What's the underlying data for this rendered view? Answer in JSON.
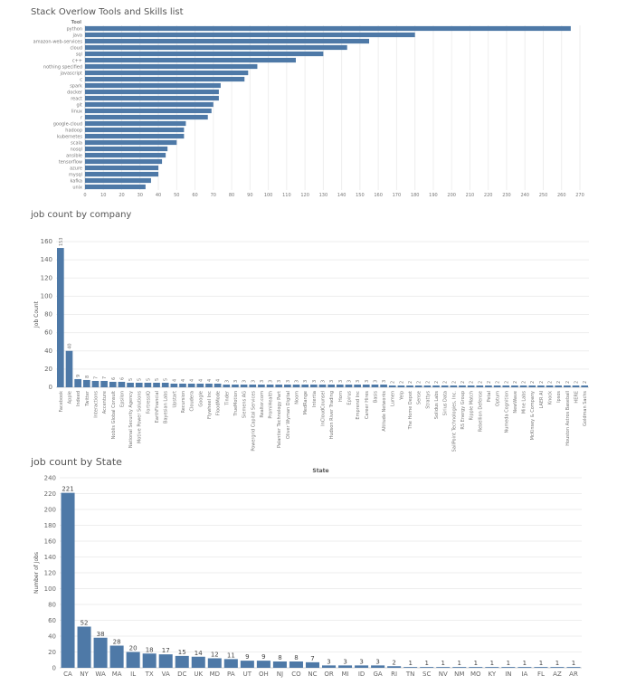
{
  "colors": {
    "bar": "#4e79a7"
  },
  "chart_data": [
    {
      "type": "bar",
      "orientation": "horizontal",
      "title": "Stack Overlow Tools and Skills list",
      "category_header": "Tool",
      "categories": [
        "python",
        "java",
        "amazon-web-services",
        "cloud",
        "sql",
        "c++",
        "nothing specified",
        "javascript",
        "c",
        "spark",
        "docker",
        "react",
        "git",
        "linux",
        "r",
        "google-cloud",
        "hadoop",
        "kubernetes",
        "scala",
        "nosql",
        "ansible",
        "tensorflow",
        "azure",
        "mysql",
        "kafka",
        "unix"
      ],
      "values": [
        265,
        180,
        155,
        143,
        130,
        115,
        94,
        89,
        87,
        74,
        73,
        73,
        70,
        69,
        67,
        55,
        54,
        54,
        50,
        45,
        44,
        42,
        40,
        40,
        36,
        33
      ],
      "xlim": [
        0,
        270
      ],
      "xticks": [
        0,
        10,
        20,
        30,
        40,
        50,
        60,
        70,
        80,
        90,
        100,
        110,
        120,
        130,
        140,
        150,
        160,
        170,
        180,
        190,
        200,
        210,
        220,
        230,
        240,
        250,
        260,
        270
      ],
      "xlabel": "",
      "grid": true
    },
    {
      "type": "bar",
      "title": "job count by company",
      "ylabel": "Job Count",
      "ylim": [
        0,
        160
      ],
      "yticks": [
        0,
        20,
        40,
        60,
        80,
        100,
        120,
        140,
        160
      ],
      "categories": [
        "Facebook",
        "Apple",
        "Indeed",
        "Twitter",
        "Interactions",
        "Accenture",
        "Noblis Global Consult",
        "Epsilon",
        "National Security Agency",
        "Motive Power Solutions",
        "FortressIQ",
        "EarthFinancial",
        "Bayesian Labs",
        "Upstart",
        "Recursion",
        "Cloudera",
        "Google",
        "Flywheel Inc",
        "FloodMode",
        "Tinder",
        "TrueMotion",
        "Siemens AG",
        "Powergrid Capital Services",
        "Realtor.com",
        "PromiHealth",
        "Palantier Technology Part",
        "Oliver Wyman Digital",
        "Noom",
        "MedRange",
        "Intertia",
        "InCloudCounsel",
        "Hudson River Trading",
        "Horn",
        "Epirus",
        "Emprend Inc",
        "Career Hires",
        "Basis",
        "Altitude Networks",
        "Lumen",
        "Yelp",
        "The Home Depot",
        "Sense",
        "Strattys",
        "Solidus Labs",
        "Sirius Data",
        "SailPoint Technologies, Inc.",
        "RS Energy Group",
        "Ripple Match",
        "Rebellion Defense",
        "Petal",
        "Optum",
        "Numeda Cognition",
        "NewWave",
        "Mine Labs",
        "McKinsey & Company",
        "LAER AI",
        "Knock",
        "Ipsos",
        "Houston Astros Baseball",
        "HERE",
        "Goldman Sachs"
      ],
      "values": [
        153,
        40,
        9,
        8,
        7,
        7,
        6,
        6,
        5,
        5,
        5,
        5,
        5,
        4,
        4,
        4,
        4,
        4,
        4,
        3,
        3,
        3,
        3,
        3,
        3,
        3,
        3,
        3,
        3,
        3,
        3,
        3,
        3,
        3,
        3,
        3,
        3,
        3,
        2,
        2,
        2,
        2,
        2,
        2,
        2,
        2,
        2,
        2,
        2,
        2,
        2,
        2,
        2,
        2,
        2,
        2,
        2,
        2,
        2,
        2,
        2
      ],
      "grid": true
    },
    {
      "type": "bar",
      "title": "job count by State",
      "xlabel": "State",
      "ylabel": "Number of Jobs",
      "ylim": [
        0,
        240
      ],
      "yticks": [
        0,
        20,
        40,
        60,
        80,
        100,
        120,
        140,
        160,
        180,
        200,
        220,
        240
      ],
      "categories": [
        "CA",
        "NY",
        "WA",
        "MA",
        "IL",
        "TX",
        "VA",
        "DC",
        "UK",
        "MD",
        "PA",
        "UT",
        "OH",
        "NJ",
        "CO",
        "NC",
        "OR",
        "MI",
        "ID",
        "GA",
        "RI",
        "TN",
        "SC",
        "NV",
        "NM",
        "MO",
        "KY",
        "IN",
        "IA",
        "FL",
        "AZ",
        "AR"
      ],
      "values": [
        221,
        52,
        38,
        28,
        20,
        18,
        17,
        15,
        14,
        12,
        11,
        9,
        9,
        8,
        8,
        7,
        3,
        3,
        3,
        3,
        2,
        1,
        1,
        1,
        1,
        1,
        1,
        1,
        1,
        1,
        1,
        1
      ],
      "grid": true
    }
  ]
}
